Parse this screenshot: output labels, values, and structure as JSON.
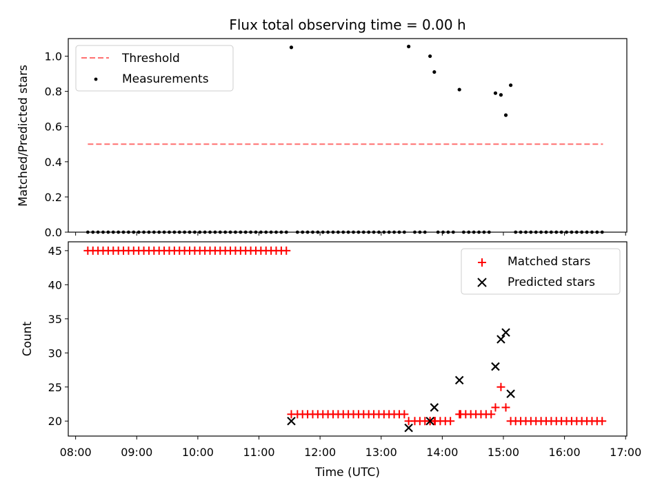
{
  "chart_data": {
    "title": "Flux total observing time = 0.00 h",
    "xlabel": "Time (UTC)",
    "xticks": [
      "08:00",
      "09:00",
      "10:00",
      "11:00",
      "12:00",
      "13:00",
      "14:00",
      "15:00",
      "16:00",
      "17:00"
    ],
    "xlim_hours": [
      7.88,
      17.02
    ],
    "top": {
      "type": "scatter",
      "ylabel": "Matched/Predicted stars",
      "ylim": [
        0,
        1.1
      ],
      "yticks": [
        "0.0",
        "0.2",
        "0.4",
        "0.6",
        "0.8",
        "1.0"
      ],
      "legend": [
        "Threshold",
        "Measurements"
      ],
      "threshold": {
        "name": "Threshold",
        "value": 0.5,
        "x_range": [
          8.2,
          16.63
        ],
        "color": "#ff6f6f",
        "style": "dashed"
      },
      "measurements": {
        "name": "Measurements",
        "color": "#000000",
        "points": [
          [
            11.53,
            1.05
          ],
          [
            13.45,
            1.055
          ],
          [
            13.8,
            1.0
          ],
          [
            13.87,
            0.91
          ],
          [
            14.28,
            0.81
          ],
          [
            14.87,
            0.79
          ],
          [
            14.96,
            0.78
          ],
          [
            15.04,
            0.665
          ],
          [
            15.12,
            0.835
          ]
        ],
        "zero_x_ranges": [
          [
            8.2,
            11.48
          ],
          [
            11.63,
            13.38
          ],
          [
            13.55,
            13.72
          ],
          [
            13.93,
            14.2
          ],
          [
            14.35,
            14.8
          ],
          [
            15.2,
            16.63
          ]
        ],
        "zero_step_hours": 0.0833
      }
    },
    "bottom": {
      "type": "scatter",
      "ylabel": "Count",
      "ylim": [
        17.8,
        46.3
      ],
      "yticks": [
        "20",
        "25",
        "30",
        "35",
        "40",
        "45"
      ],
      "legend": [
        "Matched stars",
        "Predicted stars"
      ],
      "matched": {
        "name": "Matched stars",
        "marker": "plus",
        "color": "#ff0000",
        "segments": [
          {
            "from": 8.2,
            "to": 11.48,
            "value": 45
          },
          {
            "from": 11.63,
            "to": 13.38,
            "value": 21
          },
          {
            "from": 13.55,
            "to": 14.2,
            "value": 20
          },
          {
            "from": 14.3,
            "to": 14.8,
            "value": 21
          },
          {
            "from": 15.2,
            "to": 16.63,
            "value": 20
          }
        ],
        "points": [
          [
            11.53,
            21
          ],
          [
            13.45,
            20
          ],
          [
            13.8,
            20
          ],
          [
            13.87,
            20
          ],
          [
            14.28,
            21
          ],
          [
            14.87,
            22
          ],
          [
            14.96,
            25
          ],
          [
            15.04,
            22
          ],
          [
            15.12,
            20
          ]
        ],
        "step_hours": 0.0833
      },
      "predicted": {
        "name": "Predicted stars",
        "marker": "x",
        "color": "#000000",
        "points": [
          [
            11.53,
            20
          ],
          [
            13.45,
            19
          ],
          [
            13.8,
            20
          ],
          [
            13.87,
            22
          ],
          [
            14.28,
            26
          ],
          [
            14.87,
            28
          ],
          [
            14.96,
            32
          ],
          [
            15.04,
            33
          ],
          [
            15.12,
            24
          ]
        ]
      }
    }
  }
}
